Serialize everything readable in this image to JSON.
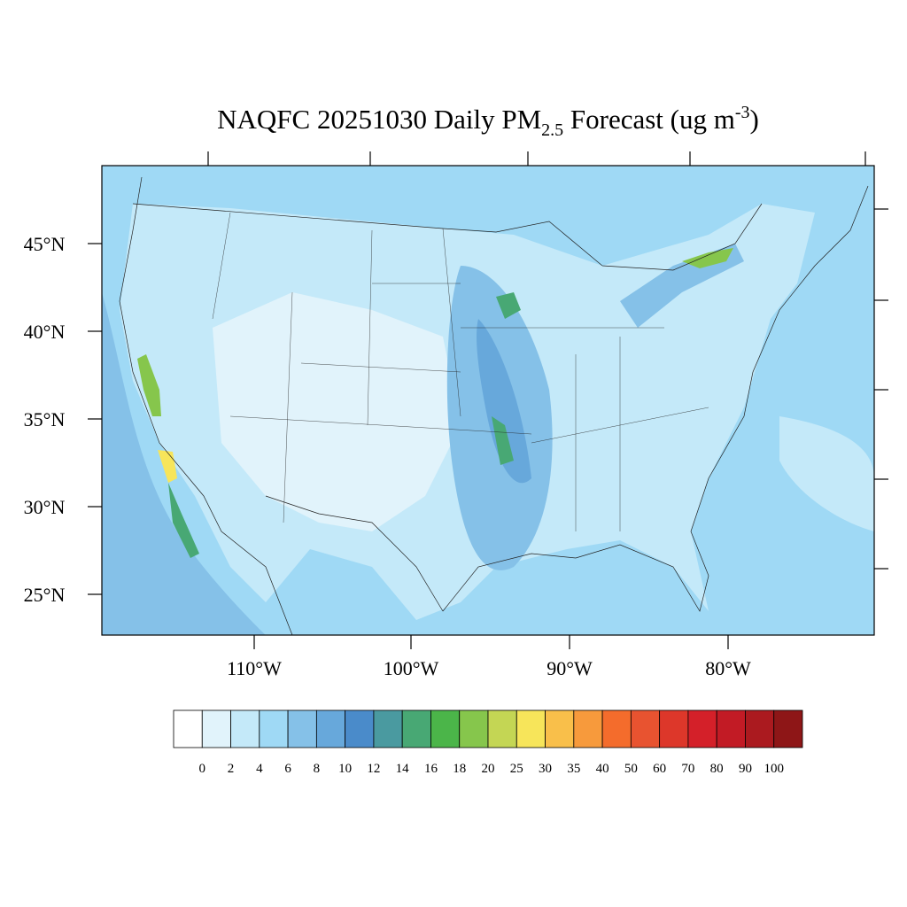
{
  "title": {
    "main": "NAQFC 20251030 Daily PM",
    "subscript": "2.5",
    "rest": " Forecast (ug m",
    "superscript": "-3",
    "close": ")"
  },
  "latitude_labels": [
    "45°N",
    "40°N",
    "35°N",
    "30°N",
    "25°N"
  ],
  "longitude_labels": [
    "110°W",
    "100°W",
    "90°W",
    "80°W"
  ],
  "colorbar": {
    "levels": [
      0,
      2,
      4,
      6,
      8,
      10,
      12,
      14,
      16,
      18,
      20,
      25,
      30,
      35,
      40,
      50,
      60,
      70,
      80,
      90,
      100
    ],
    "colors": [
      "#ffffff",
      "#e1f3fb",
      "#c4e9f9",
      "#9fd9f5",
      "#85c1e8",
      "#67a8db",
      "#4a8bca",
      "#4a9aa0",
      "#48a874",
      "#4bb549",
      "#86c64c",
      "#c4d654",
      "#f7e55a",
      "#f9bf4a",
      "#f79a3c",
      "#f46c2c",
      "#e85330",
      "#dd372a",
      "#d42029",
      "#c21b25",
      "#ab1a1f",
      "#8e1617"
    ]
  }
}
